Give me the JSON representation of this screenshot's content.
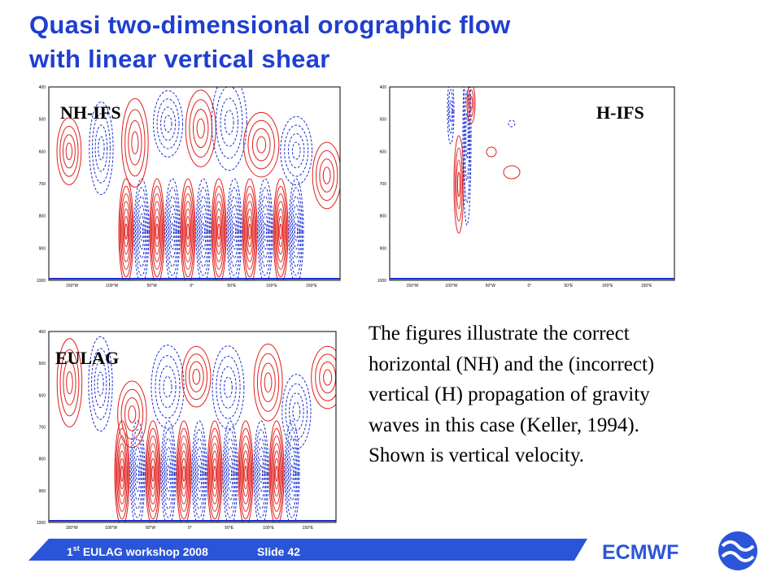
{
  "header": {
    "title_lines": [
      "Quasi two-dimensional orographic flow",
      "with linear vertical shear"
    ]
  },
  "panels": [
    {
      "label": "NH-IFS"
    },
    {
      "label": "H-IFS"
    },
    {
      "label": "EULAG"
    }
  ],
  "axes": {
    "y_labels": [
      "400",
      "500",
      "600",
      "700",
      "800",
      "900",
      "1000"
    ],
    "x_labels": [
      "150°W",
      "100°W",
      "50°W",
      "0°",
      "50°E",
      "100°E",
      "150°E"
    ]
  },
  "body": {
    "lines": [
      "The figures illustrate the correct",
      "horizontal (NH) and the (incorrect)",
      "vertical (H) propagation of gravity",
      "waves in this case (Keller, 1994).",
      "Shown is vertical velocity."
    ]
  },
  "footer": {
    "event_number": "1",
    "event_suffix": "st",
    "event_text": "EULAG workshop 2008",
    "slide": "Slide 42",
    "logo": "ECMWF"
  }
}
